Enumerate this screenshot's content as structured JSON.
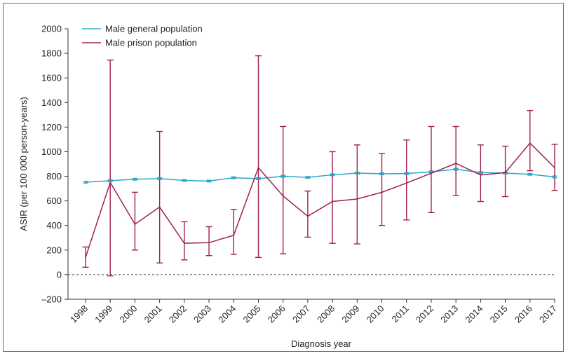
{
  "chart_data": {
    "type": "line",
    "title": "",
    "xlabel": "Diagnosis year",
    "ylabel": "ASIR (per 100 000 person-years)",
    "ylim": [
      -200,
      2000
    ],
    "yticks": [
      -200,
      0,
      200,
      400,
      600,
      800,
      1000,
      1200,
      1400,
      1600,
      1800,
      2000
    ],
    "ytick_labels": [
      "–200",
      "0",
      "200",
      "400",
      "600",
      "800",
      "1000",
      "1200",
      "1400",
      "1600",
      "1800",
      "2000"
    ],
    "legend_position": "top-left",
    "reference_line": {
      "y": 0,
      "style": "dashed"
    },
    "categories": [
      "1998",
      "1999",
      "2000",
      "2001",
      "2002",
      "2003",
      "2004",
      "2005",
      "2006",
      "2007",
      "2008",
      "2009",
      "2010",
      "2011",
      "2012",
      "2013",
      "2014",
      "2015",
      "2016",
      "2017"
    ],
    "series": [
      {
        "name": "Male general population",
        "color": "#2aa8c6",
        "values": [
          752,
          764,
          776,
          781,
          766,
          761,
          788,
          781,
          800,
          791,
          812,
          826,
          820,
          822,
          836,
          857,
          830,
          826,
          816,
          795
        ],
        "ci_low": [
          745,
          757,
          769,
          774,
          759,
          754,
          781,
          774,
          793,
          784,
          805,
          819,
          813,
          815,
          829,
          850,
          823,
          819,
          809,
          788
        ],
        "ci_high": [
          759,
          771,
          783,
          788,
          773,
          768,
          795,
          788,
          807,
          798,
          819,
          833,
          827,
          829,
          843,
          864,
          837,
          833,
          823,
          802
        ]
      },
      {
        "name": "Male prison population",
        "color": "#a0214e",
        "values": [
          140,
          750,
          410,
          550,
          255,
          260,
          320,
          870,
          640,
          475,
          595,
          615,
          670,
          745,
          825,
          905,
          810,
          830,
          1070,
          870
        ],
        "ci_low": [
          60,
          -10,
          200,
          95,
          120,
          155,
          165,
          140,
          170,
          305,
          255,
          250,
          400,
          445,
          505,
          645,
          595,
          635,
          845,
          685
        ],
        "ci_high": [
          225,
          1745,
          670,
          1165,
          430,
          390,
          530,
          1780,
          1205,
          680,
          1000,
          1055,
          985,
          1095,
          1205,
          1205,
          1055,
          1045,
          1335,
          1060
        ]
      }
    ]
  }
}
